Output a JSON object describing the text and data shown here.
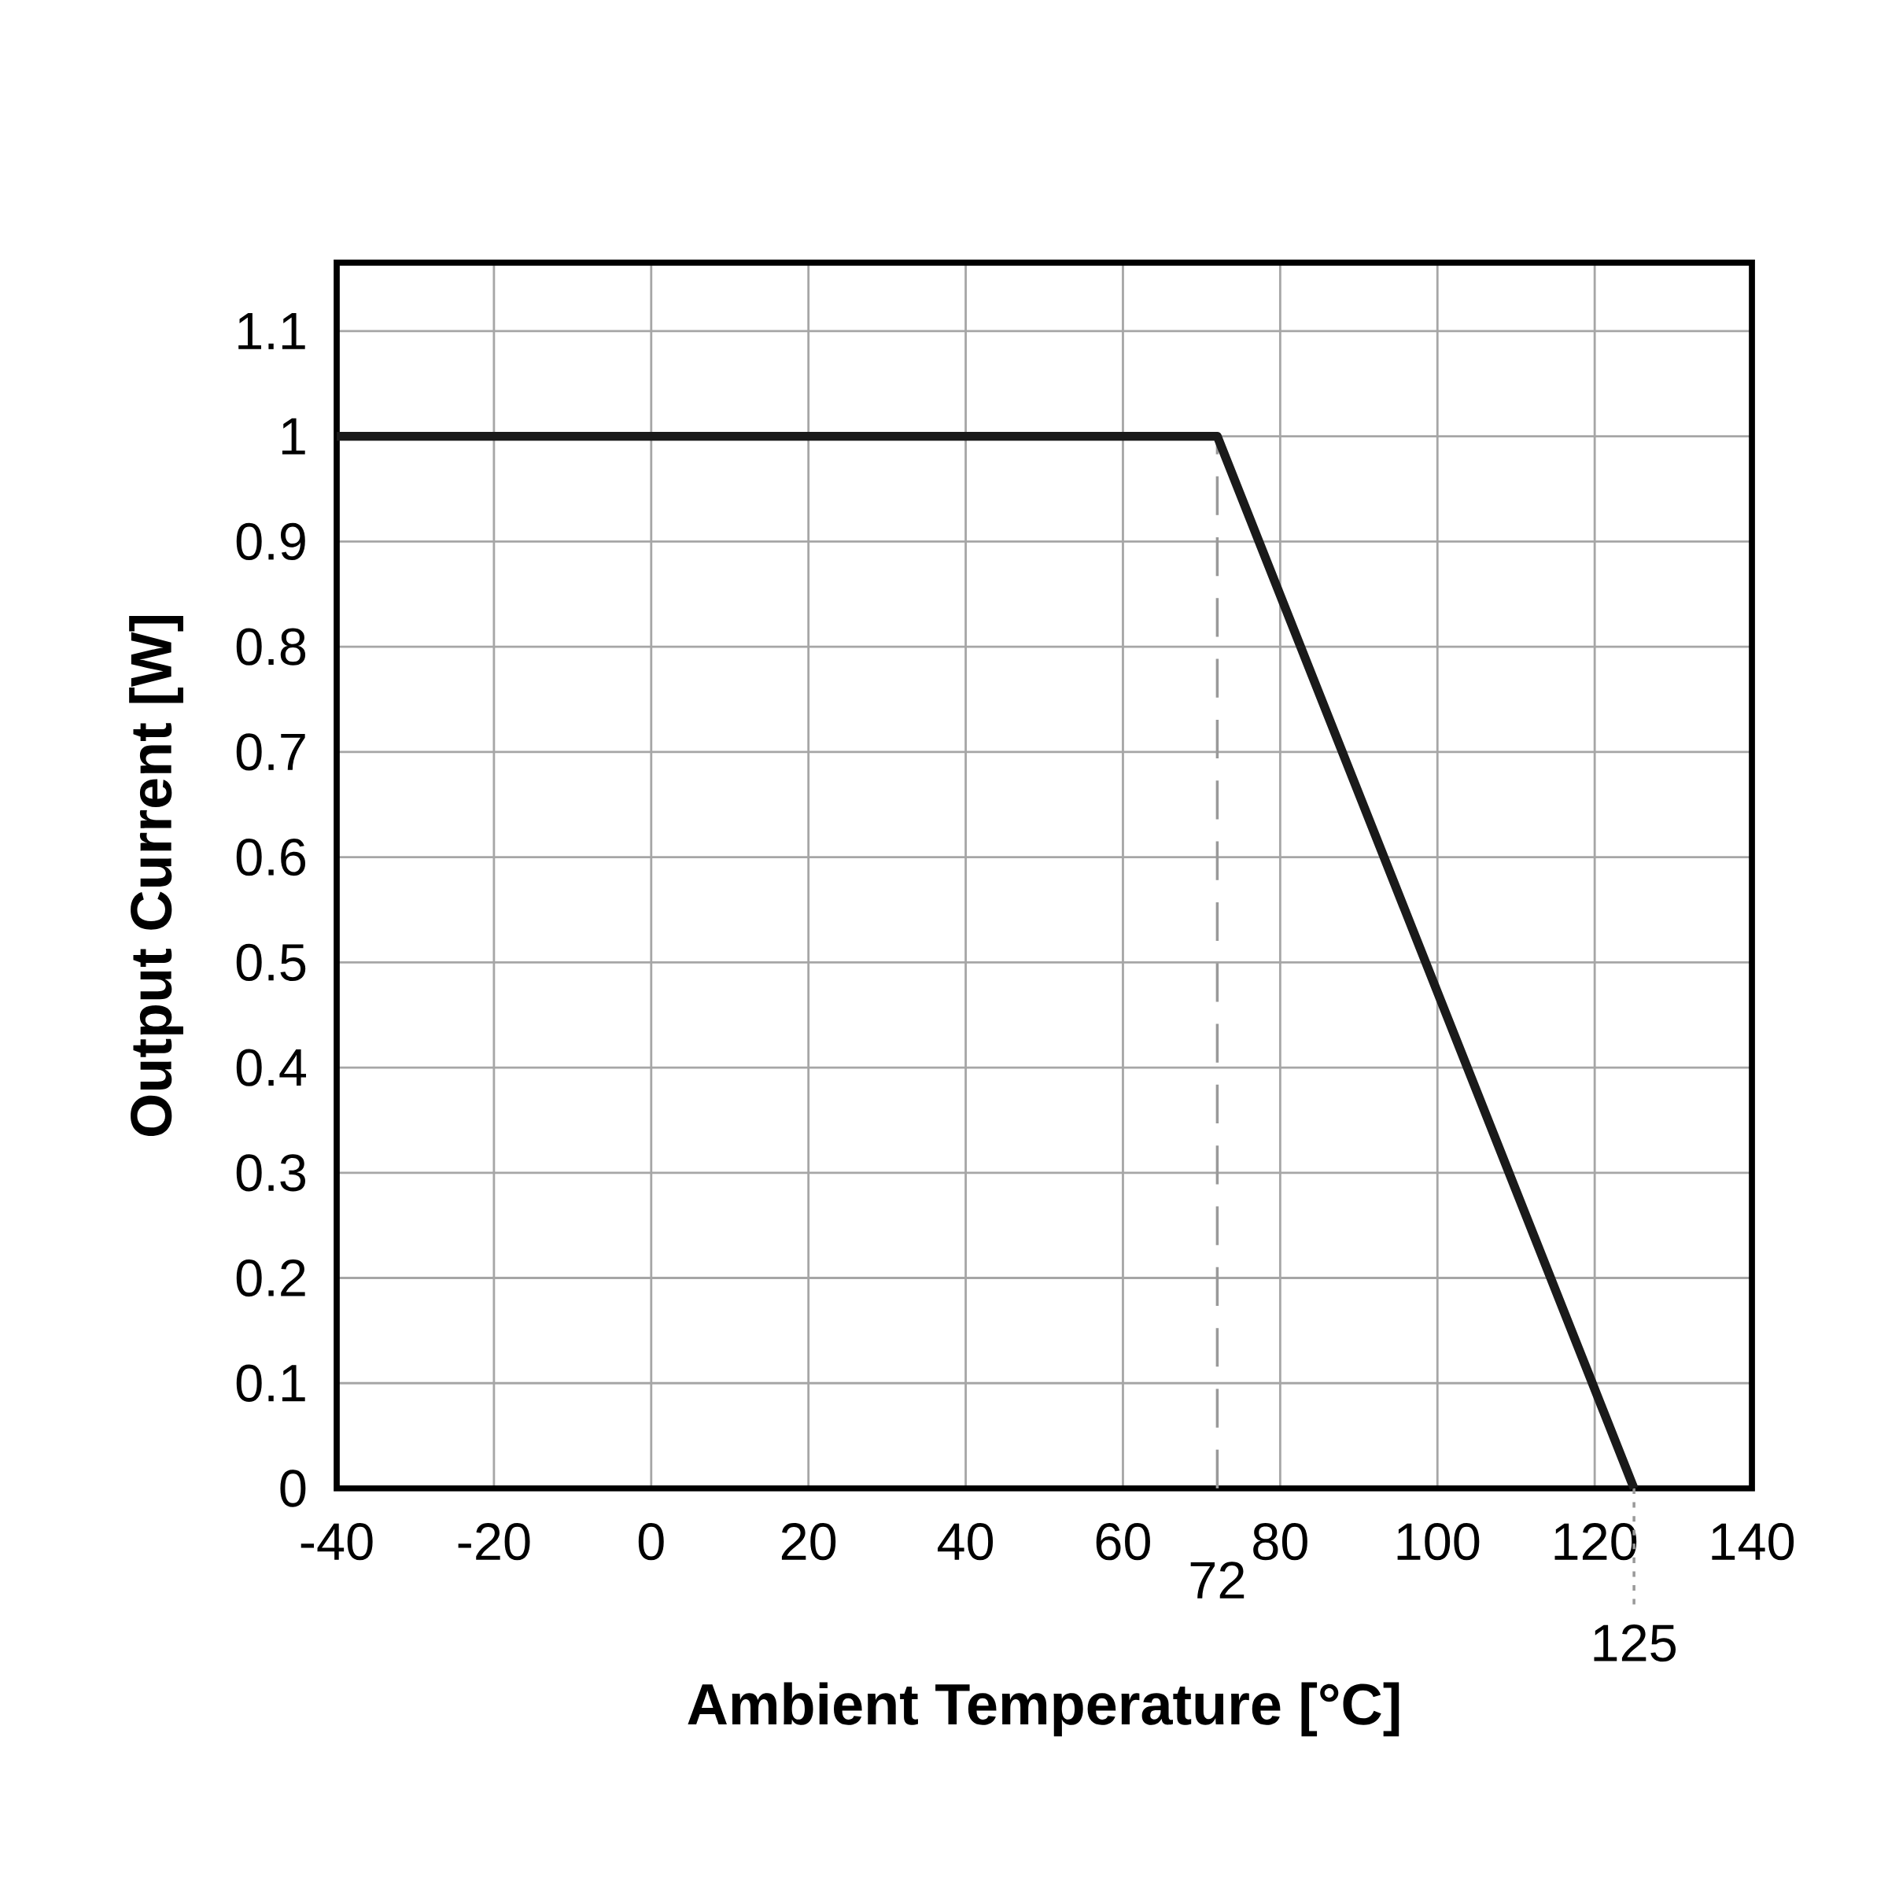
{
  "chart_data": {
    "type": "line",
    "xlabel": "Ambient Temperature [°C]",
    "ylabel": "Output Current [W]",
    "x": [
      -40,
      72,
      125
    ],
    "values": [
      1,
      1,
      0
    ],
    "color": "#1a1a1a",
    "xlim": [
      -40,
      140
    ],
    "ylim": [
      0,
      1.165
    ],
    "xticks": [
      -40,
      -20,
      0,
      20,
      40,
      60,
      80,
      100,
      120,
      140
    ],
    "yticks": [
      0,
      0.1,
      0.2,
      0.3,
      0.4,
      0.5,
      0.6,
      0.7,
      0.8,
      0.9,
      1,
      1.1
    ],
    "grid": true,
    "ref_lines": [
      {
        "axis": "x",
        "value": 72,
        "label": "72",
        "line_style": "dashed",
        "color": "#999999"
      },
      {
        "axis": "x",
        "value": 125,
        "label": "125",
        "line_style": "dotted",
        "color": "#999999"
      }
    ]
  }
}
